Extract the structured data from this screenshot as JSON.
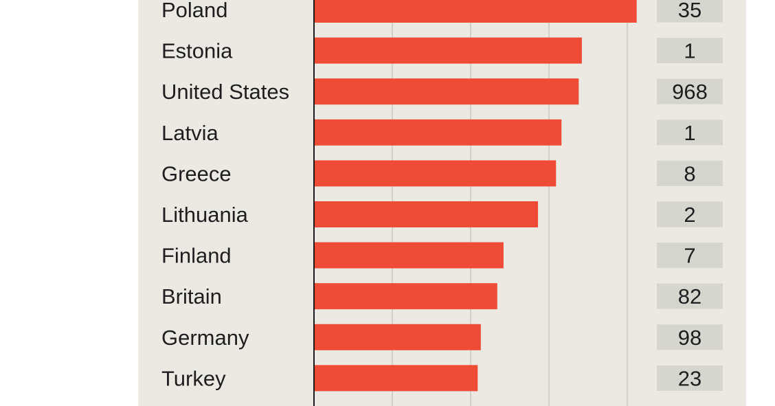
{
  "chart_data": {
    "type": "bar",
    "orientation": "horizontal",
    "categories": [
      "Poland",
      "Estonia",
      "United States",
      "Latvia",
      "Greece",
      "Lithuania",
      "Finland",
      "Britain",
      "Germany",
      "Turkey"
    ],
    "values": [
      4.12,
      3.42,
      3.38,
      3.16,
      3.09,
      2.86,
      2.42,
      2.34,
      2.13,
      2.09
    ],
    "xlim": [
      0,
      4.5
    ],
    "grid": true,
    "side_values": [
      "35",
      "1",
      "968",
      "1",
      "8",
      "2",
      "7",
      "82",
      "98",
      "23"
    ],
    "colors": {
      "bar": "#ee4c36",
      "background": "#ebe9e1",
      "gridline": "#c9c7bf",
      "axis": "#1a1a1a",
      "value_box": "#d6d5ce"
    }
  }
}
